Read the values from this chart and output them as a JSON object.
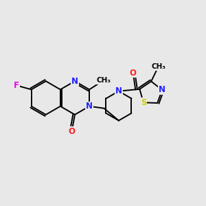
{
  "background_color": "#e8e8e8",
  "atom_colors": {
    "N": "#2020ff",
    "O": "#ff2020",
    "F": "#ee00ee",
    "S": "#cccc00",
    "C": "#000000"
  },
  "bond_color": "#000000",
  "bond_lw": 1.4,
  "font_size": 8.5,
  "figsize": [
    3.0,
    3.0
  ],
  "dpi": 100
}
